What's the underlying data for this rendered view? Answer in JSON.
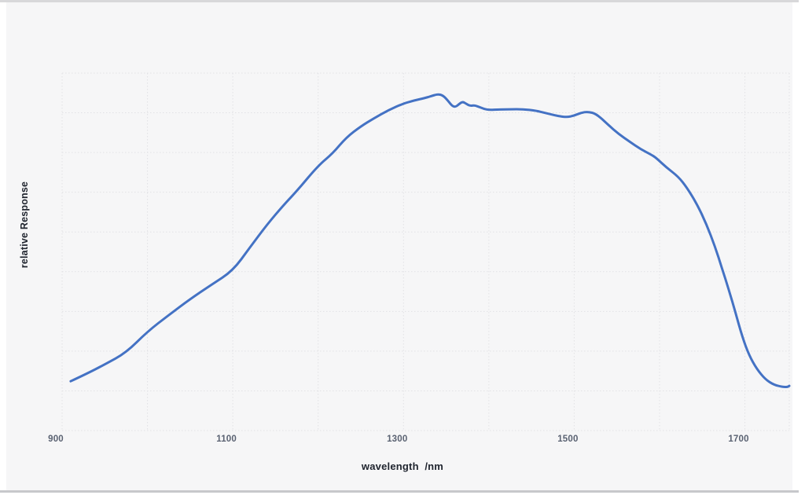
{
  "page": {
    "background": "#ffffff"
  },
  "card": {
    "background": "#f6f6f7",
    "top_border_color": "#d8d8da",
    "bottom_border_color": "#c7c8cb"
  },
  "chart_data": {
    "type": "line",
    "title": "",
    "xlabel": "wavelength  /nm",
    "ylabel": "relative Response",
    "x_range": [
      900,
      1752
    ],
    "x_gridline_step": 100,
    "x_gridline_values": [
      900,
      1000,
      1100,
      1200,
      1300,
      1400,
      1500,
      1600,
      1700
    ],
    "x_tick_labels": [
      "900",
      "1100",
      "1300",
      "1500",
      "1700"
    ],
    "x_tick_values": [
      900,
      1100,
      1300,
      1500,
      1700
    ],
    "y_range": [
      0,
      1
    ],
    "y_gridline_count": 10,
    "grid": true,
    "legend": "none",
    "line_color": "#4472c4",
    "line_width": 3,
    "grid_color": "#e2e2e5",
    "tick_color": "#5a6272",
    "label_color": "#20252f",
    "series": [
      {
        "name": "relative response",
        "points": [
          [
            910,
            0.138
          ],
          [
            928,
            0.158
          ],
          [
            950,
            0.185
          ],
          [
            975,
            0.218
          ],
          [
            1000,
            0.277
          ],
          [
            1025,
            0.323
          ],
          [
            1050,
            0.368
          ],
          [
            1075,
            0.408
          ],
          [
            1100,
            0.447
          ],
          [
            1120,
            0.512
          ],
          [
            1140,
            0.576
          ],
          [
            1160,
            0.632
          ],
          [
            1175,
            0.67
          ],
          [
            1200,
            0.741
          ],
          [
            1217,
            0.775
          ],
          [
            1233,
            0.82
          ],
          [
            1250,
            0.851
          ],
          [
            1265,
            0.873
          ],
          [
            1283,
            0.897
          ],
          [
            1300,
            0.915
          ],
          [
            1312,
            0.923
          ],
          [
            1325,
            0.93
          ],
          [
            1333,
            0.936
          ],
          [
            1340,
            0.941
          ],
          [
            1346,
            0.938
          ],
          [
            1352,
            0.923
          ],
          [
            1357,
            0.908
          ],
          [
            1361,
            0.905
          ],
          [
            1365,
            0.913
          ],
          [
            1369,
            0.92
          ],
          [
            1373,
            0.915
          ],
          [
            1378,
            0.908
          ],
          [
            1383,
            0.91
          ],
          [
            1388,
            0.906
          ],
          [
            1394,
            0.9
          ],
          [
            1400,
            0.897
          ],
          [
            1412,
            0.898
          ],
          [
            1425,
            0.899
          ],
          [
            1440,
            0.899
          ],
          [
            1455,
            0.895
          ],
          [
            1467,
            0.888
          ],
          [
            1477,
            0.882
          ],
          [
            1486,
            0.878
          ],
          [
            1492,
            0.877
          ],
          [
            1500,
            0.881
          ],
          [
            1508,
            0.889
          ],
          [
            1516,
            0.892
          ],
          [
            1526,
            0.886
          ],
          [
            1540,
            0.855
          ],
          [
            1552,
            0.83
          ],
          [
            1565,
            0.808
          ],
          [
            1578,
            0.787
          ],
          [
            1590,
            0.772
          ],
          [
            1596,
            0.763
          ],
          [
            1608,
            0.736
          ],
          [
            1622,
            0.71
          ],
          [
            1632,
            0.68
          ],
          [
            1644,
            0.633
          ],
          [
            1655,
            0.577
          ],
          [
            1665,
            0.515
          ],
          [
            1673,
            0.455
          ],
          [
            1681,
            0.395
          ],
          [
            1689,
            0.33
          ],
          [
            1697,
            0.262
          ],
          [
            1705,
            0.21
          ],
          [
            1714,
            0.172
          ],
          [
            1724,
            0.143
          ],
          [
            1734,
            0.128
          ],
          [
            1744,
            0.122
          ],
          [
            1750,
            0.122
          ],
          [
            1752,
            0.125
          ]
        ]
      }
    ]
  }
}
